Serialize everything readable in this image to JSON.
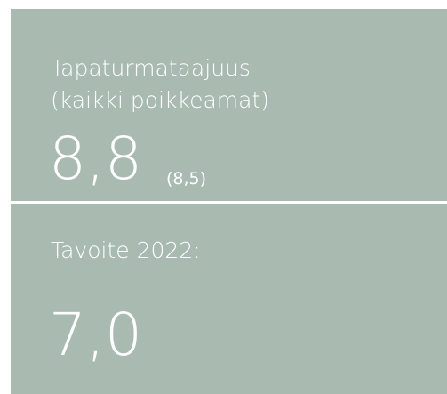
{
  "top": {
    "title_line1": "Tapaturmataajuus",
    "title_line2": "(kaikki poikkeamat)",
    "value": "8,8",
    "previous": "(8,5)"
  },
  "bottom": {
    "label": "Tavoite 2022:",
    "value": "7,0"
  }
}
